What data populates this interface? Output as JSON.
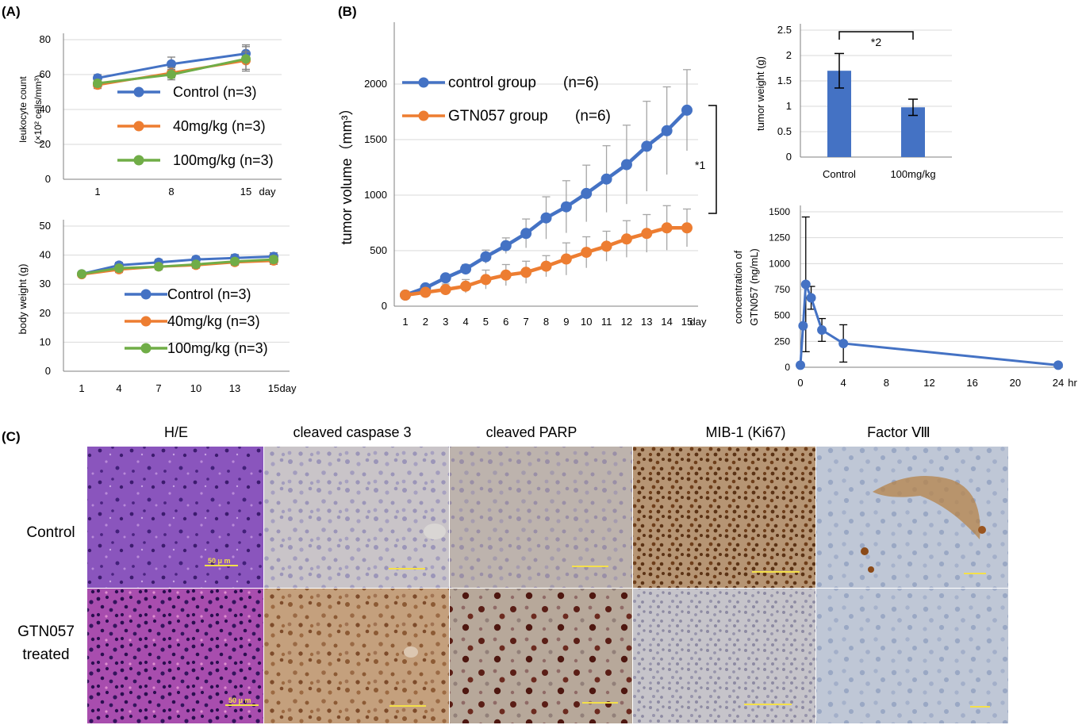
{
  "panel_labels": {
    "a": "(A)",
    "b": "(B)",
    "c": "(C)"
  },
  "colors": {
    "control": "#4472c4",
    "mid": "#ed7d31",
    "high": "#70ad47",
    "bar": "#4472c4",
    "grid": "#d9d9d9"
  },
  "chart_data": [
    {
      "id": "leuko",
      "type": "line",
      "ylabel": "leukocyte count",
      "ylabel2": "(×10² cells/mm³)",
      "x_unit": "day",
      "x": [
        1,
        8,
        15
      ],
      "ylim": [
        0,
        80
      ],
      "yticks": [
        0,
        20,
        40,
        60,
        80
      ],
      "xticks": [
        1,
        8,
        15
      ],
      "grid": true,
      "legend_position": "right",
      "series": [
        {
          "name": "Control (n=3)",
          "color": "#4472c4",
          "values": [
            58,
            66,
            72
          ],
          "err": [
            2,
            4,
            5
          ]
        },
        {
          "name": "40mg/kg (n=3)",
          "color": "#ed7d31",
          "values": [
            54,
            61,
            68
          ],
          "err": [
            2,
            3,
            5
          ]
        },
        {
          "name": "100mg/kg (n=3)",
          "color": "#70ad47",
          "values": [
            55,
            60,
            69
          ],
          "err": [
            2,
            3,
            7
          ]
        }
      ]
    },
    {
      "id": "bw",
      "type": "line",
      "ylabel": "body weight (g)",
      "x_unit": "day",
      "x": [
        1,
        4,
        7,
        10,
        13,
        15
      ],
      "ylim": [
        0,
        50
      ],
      "yticks": [
        0,
        10,
        20,
        30,
        40,
        50
      ],
      "xticks": [
        1,
        4,
        7,
        10,
        13,
        15
      ],
      "grid": true,
      "legend_position": "bottom-right",
      "series": [
        {
          "name": "Control (n=3)",
          "color": "#4472c4",
          "values": [
            33.5,
            36.5,
            37.5,
            38.5,
            39,
            39.5
          ],
          "err": [
            0.8,
            1,
            1,
            1,
            1.2,
            1.3
          ]
        },
        {
          "name": "40mg/kg (n=3)",
          "color": "#ed7d31",
          "values": [
            33.3,
            35,
            36,
            36.5,
            37.5,
            38
          ],
          "err": [
            0.8,
            1,
            1,
            1,
            1,
            1.2
          ]
        },
        {
          "name": "100mg/kg (n=3)",
          "color": "#70ad47",
          "values": [
            33.5,
            35.5,
            36,
            36.8,
            37.8,
            38.5
          ],
          "err": [
            0.8,
            1,
            1,
            1,
            1,
            1.2
          ]
        }
      ]
    },
    {
      "id": "tv",
      "type": "line",
      "ylabel": "tumor volume（mm³）",
      "x_unit": "day",
      "x": [
        1,
        2,
        3,
        4,
        5,
        6,
        7,
        8,
        9,
        10,
        11,
        12,
        13,
        14,
        15
      ],
      "ylim": [
        0,
        2500
      ],
      "yticks": [
        0,
        500,
        1000,
        1500,
        2000
      ],
      "xticks": [
        1,
        2,
        3,
        4,
        5,
        6,
        7,
        8,
        9,
        10,
        11,
        12,
        13,
        14,
        15
      ],
      "grid": true,
      "legend_position": "top-left",
      "annotation": "*1",
      "series": [
        {
          "name": "control group",
          "n": "(n=6)",
          "color": "#4472c4",
          "values": [
            100,
            165,
            255,
            335,
            445,
            545,
            655,
            795,
            895,
            1015,
            1145,
            1275,
            1440,
            1580,
            1765
          ],
          "err": [
            10,
            20,
            30,
            40,
            60,
            70,
            130,
            190,
            235,
            255,
            300,
            355,
            405,
            395,
            365
          ]
        },
        {
          "name": "GTN057 group",
          "n": "(n=6)",
          "color": "#ed7d31",
          "values": [
            100,
            125,
            150,
            180,
            240,
            280,
            305,
            360,
            425,
            485,
            540,
            605,
            655,
            705,
            705
          ],
          "err": [
            10,
            20,
            50,
            60,
            85,
            95,
            100,
            95,
            145,
            140,
            135,
            165,
            170,
            200,
            170
          ]
        }
      ]
    },
    {
      "id": "tw",
      "type": "bar",
      "ylabel": "tumor weight (g)",
      "categories": [
        "Control",
        "100mg/kg"
      ],
      "values": [
        1.7,
        0.98
      ],
      "err": [
        0.34,
        0.16
      ],
      "ylim": [
        0,
        2.5
      ],
      "yticks": [
        0,
        0.5,
        1,
        1.5,
        2,
        2.5
      ],
      "grid": true,
      "annotation": "*2"
    },
    {
      "id": "pk",
      "type": "line",
      "ylabel": "concentration of",
      "ylabel2": "GTN057 (ng/mL)",
      "x_unit": "hr",
      "x": [
        0,
        0.25,
        0.5,
        1,
        2,
        4,
        24
      ],
      "ylim": [
        0,
        1500
      ],
      "yticks": [
        0,
        250,
        500,
        750,
        1000,
        1250,
        1500
      ],
      "xticks": [
        0,
        4,
        8,
        12,
        16,
        20,
        24
      ],
      "grid": true,
      "series": [
        {
          "name": "",
          "color": "#4472c4",
          "values": [
            20,
            400,
            800,
            670,
            360,
            230,
            20
          ],
          "err": [
            0,
            0,
            650,
            110,
            110,
            180,
            0
          ]
        }
      ]
    }
  ],
  "histology": {
    "stains": [
      "H/E",
      "cleaved caspase 3",
      "cleaved PARP",
      "MIB-1 (Ki67)",
      "Factor Ⅷ"
    ],
    "rows": [
      "Control",
      "GTN057",
      "treated"
    ],
    "scale_bar": "50 μ m"
  }
}
